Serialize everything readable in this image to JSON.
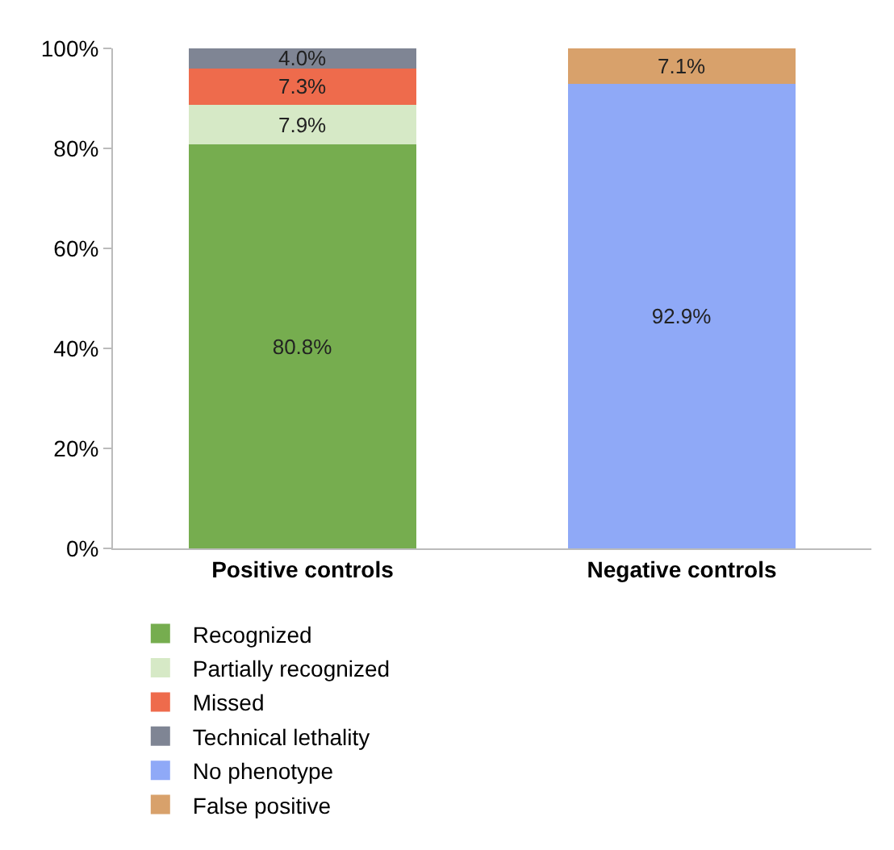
{
  "chart_data": {
    "type": "bar",
    "stacked": true,
    "categories": [
      "Positive controls",
      "Negative controls"
    ],
    "series": [
      {
        "name": "Recognized",
        "color": "#76ad4f",
        "values": [
          80.8,
          null
        ],
        "value_labels": [
          "80.8%",
          null
        ]
      },
      {
        "name": "Partially recognized",
        "color": "#d6e9c6",
        "values": [
          7.9,
          null
        ],
        "value_labels": [
          "7.9%",
          null
        ]
      },
      {
        "name": "Missed",
        "color": "#ee6b4c",
        "values": [
          7.3,
          null
        ],
        "value_labels": [
          "7.3%",
          null
        ]
      },
      {
        "name": "Technical lethality",
        "color": "#7f8594",
        "values": [
          4.0,
          null
        ],
        "value_labels": [
          "4.0%",
          null
        ]
      },
      {
        "name": "No phenotype",
        "color": "#8fa9f7",
        "values": [
          null,
          92.9
        ],
        "value_labels": [
          null,
          "92.9%"
        ]
      },
      {
        "name": "False positive",
        "color": "#d8a16b",
        "values": [
          null,
          7.1
        ],
        "value_labels": [
          null,
          "7.1%"
        ]
      }
    ],
    "ylim": [
      0,
      100
    ],
    "yticks": [
      {
        "value": 0,
        "label": "0%"
      },
      {
        "value": 20,
        "label": "20%"
      },
      {
        "value": 40,
        "label": "40%"
      },
      {
        "value": 60,
        "label": "60%"
      },
      {
        "value": 80,
        "label": "80%"
      },
      {
        "value": 100,
        "label": "100%"
      }
    ],
    "grid": false,
    "legend": "bottom"
  }
}
